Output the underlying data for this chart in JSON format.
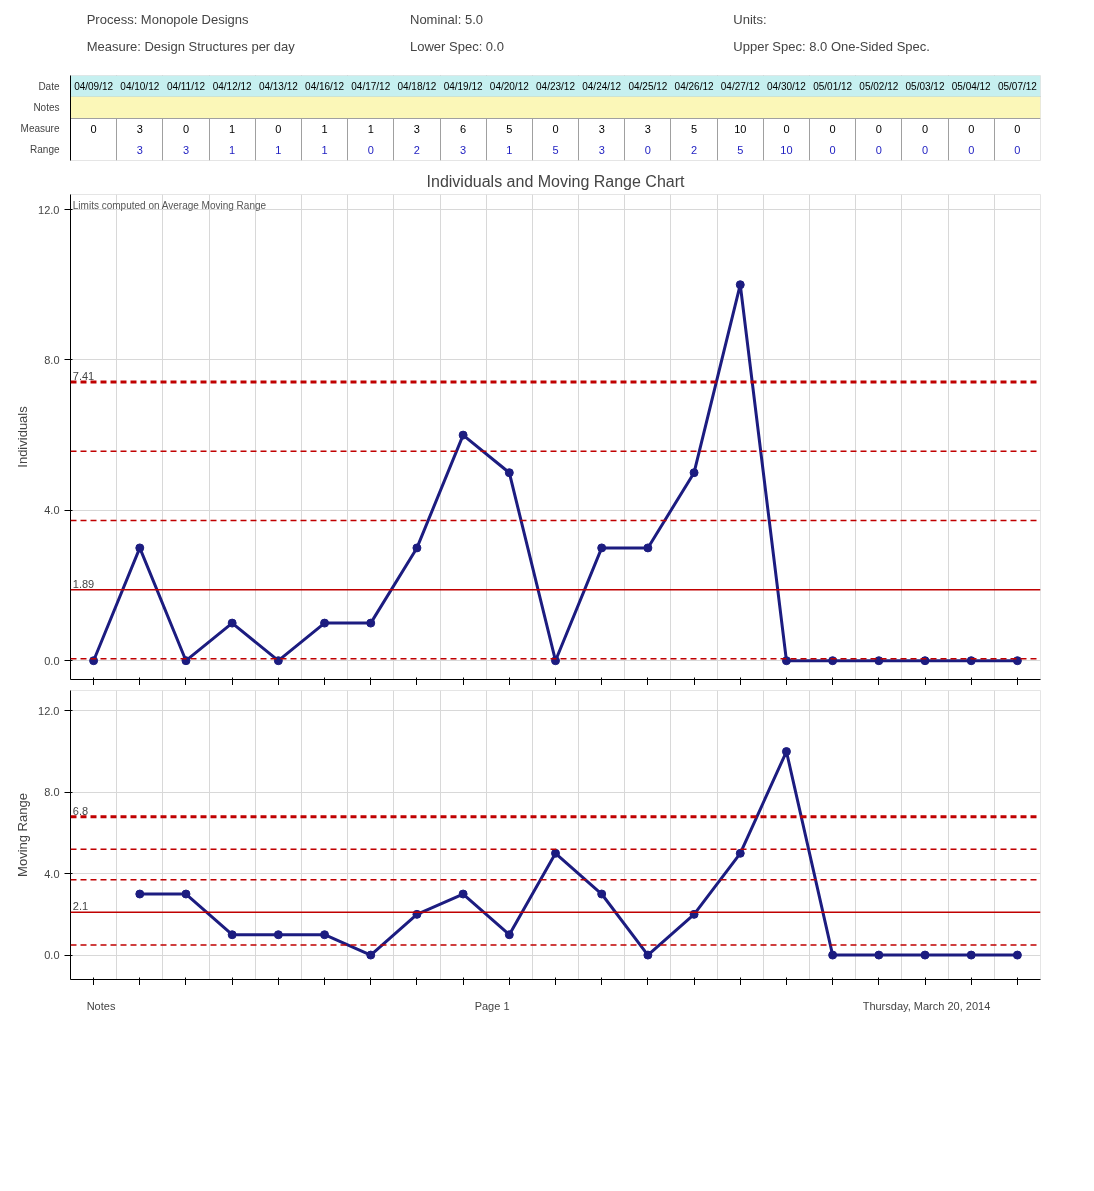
{
  "chart_data": [
    {
      "type": "line",
      "title": "Individuals and Moving Range Chart",
      "annotations": [
        "Process: Monopole Designs",
        "Measure: Design Structures per day",
        "Nominal: 5.0",
        "Lower Spec: 0.0",
        "Units:",
        "Upper Spec: 8.0 One-Sided Spec.",
        "Date",
        "Notes",
        "Measure",
        "Range",
        "Limits computed on Average Moving Range"
      ],
      "ylabel": "Individuals",
      "categories": [
        "04/09/12",
        "04/10/12",
        "04/11/12",
        "04/12/12",
        "04/13/12",
        "04/16/12",
        "04/17/12",
        "04/18/12",
        "04/19/12",
        "04/20/12",
        "04/23/12",
        "04/24/12",
        "04/25/12",
        "04/26/12",
        "04/27/12",
        "04/30/12",
        "05/01/12",
        "05/02/12",
        "05/03/12",
        "05/04/12",
        "05/07/12"
      ],
      "series": [
        {
          "color": "#1c1c80",
          "values": [
            0,
            3,
            0,
            1,
            0,
            1,
            1,
            3,
            6,
            5,
            0,
            3,
            3,
            5,
            10,
            0,
            0,
            0,
            0,
            0,
            0
          ]
        }
      ],
      "ylim": [
        -0.5,
        12.4
      ],
      "yticks": [
        {
          "value": 0,
          "label": "0.0"
        },
        {
          "value": 4,
          "label": "4.0"
        },
        {
          "value": 8,
          "label": "8.0"
        },
        {
          "value": 12,
          "label": "12.0"
        }
      ],
      "ref_lines": [
        {
          "axis": "y",
          "value": 7.41,
          "label": "7.41",
          "color": "#c00000",
          "line_style": "dashed"
        },
        {
          "axis": "y",
          "value": 5.57,
          "color": "#c00000",
          "line_style": "dashed"
        },
        {
          "axis": "y",
          "value": 3.73,
          "color": "#c00000",
          "line_style": "dashed"
        },
        {
          "axis": "y",
          "value": 1.89,
          "label": "1.89",
          "color": "#c00000",
          "line_style": "solid"
        },
        {
          "axis": "y",
          "value": 0.05,
          "color": "#c00000",
          "line_style": "dashed"
        }
      ],
      "grid": true,
      "marker": "circle",
      "line_style": "solid",
      "data_labels": true,
      "tick_labels": "y"
    },
    {
      "type": "line",
      "annotations": [
        "Notes",
        "Page 1",
        "Thursday, March 20, 2014"
      ],
      "ylabel": "Moving Range",
      "categories": [
        null,
        null,
        null,
        null,
        null,
        null,
        null,
        null,
        null,
        null,
        null,
        null,
        null,
        null,
        null,
        null,
        null,
        null,
        null,
        null,
        null
      ],
      "series": [
        {
          "color": "#1c1c80",
          "values": [
            null,
            3,
            3,
            1,
            1,
            1,
            0,
            2,
            3,
            1,
            5,
            3,
            0,
            2,
            5,
            10,
            0,
            0,
            0,
            0,
            0
          ]
        }
      ],
      "ylim": [
        -1.2,
        13
      ],
      "yticks": [
        {
          "value": 0,
          "label": "0.0"
        },
        {
          "value": 4,
          "label": "4.0"
        },
        {
          "value": 8,
          "label": "8.0"
        },
        {
          "value": 12,
          "label": "12.0"
        }
      ],
      "ref_lines": [
        {
          "axis": "y",
          "value": 6.8,
          "label": "6.8",
          "color": "#c00000",
          "line_style": "dashed"
        },
        {
          "axis": "y",
          "value": 5.2,
          "color": "#c00000",
          "line_style": "dashed"
        },
        {
          "axis": "y",
          "value": 3.7,
          "color": "#c00000",
          "line_style": "dashed"
        },
        {
          "axis": "y",
          "value": 2.1,
          "label": "2.1",
          "color": "#c00000",
          "line_style": "solid"
        },
        {
          "axis": "y",
          "value": 0.5,
          "color": "#c00000",
          "line_style": "dashed"
        }
      ],
      "grid": true,
      "marker": "circle",
      "line_style": "solid",
      "data_labels": true,
      "tick_labels": "y"
    }
  ]
}
